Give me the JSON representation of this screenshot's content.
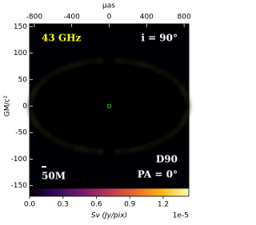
{
  "chart_data": {
    "type": "image",
    "x_label": "μas",
    "y_label": "GM/c²",
    "xlim": [
      -850,
      850
    ],
    "xticks": [
      -800,
      -400,
      0,
      400,
      800
    ],
    "ylim": [
      -155,
      155
    ],
    "yticks": [
      -150,
      -100,
      -50,
      0,
      50,
      100,
      150
    ],
    "annotations": [
      "43 GHz",
      "i = 90°",
      "D90",
      "PA = 0°"
    ],
    "scale_bar": {
      "label": "50M",
      "length": 50
    },
    "marker": {
      "x": 0,
      "y": 0
    },
    "colormap": [
      "#000004",
      "#320a5e",
      "#781c6d",
      "#bb3755",
      "#ed6925",
      "#fbb61a",
      "#fcffa4"
    ],
    "colorbar": {
      "label": "Sν (Jy/pix)",
      "offset_label": "1e-5",
      "clim": [
        0,
        1.43
      ],
      "ticks": [
        {
          "value": 0,
          "label": "0.0"
        },
        0.3,
        0.6,
        0.9,
        1.2
      ]
    }
  }
}
